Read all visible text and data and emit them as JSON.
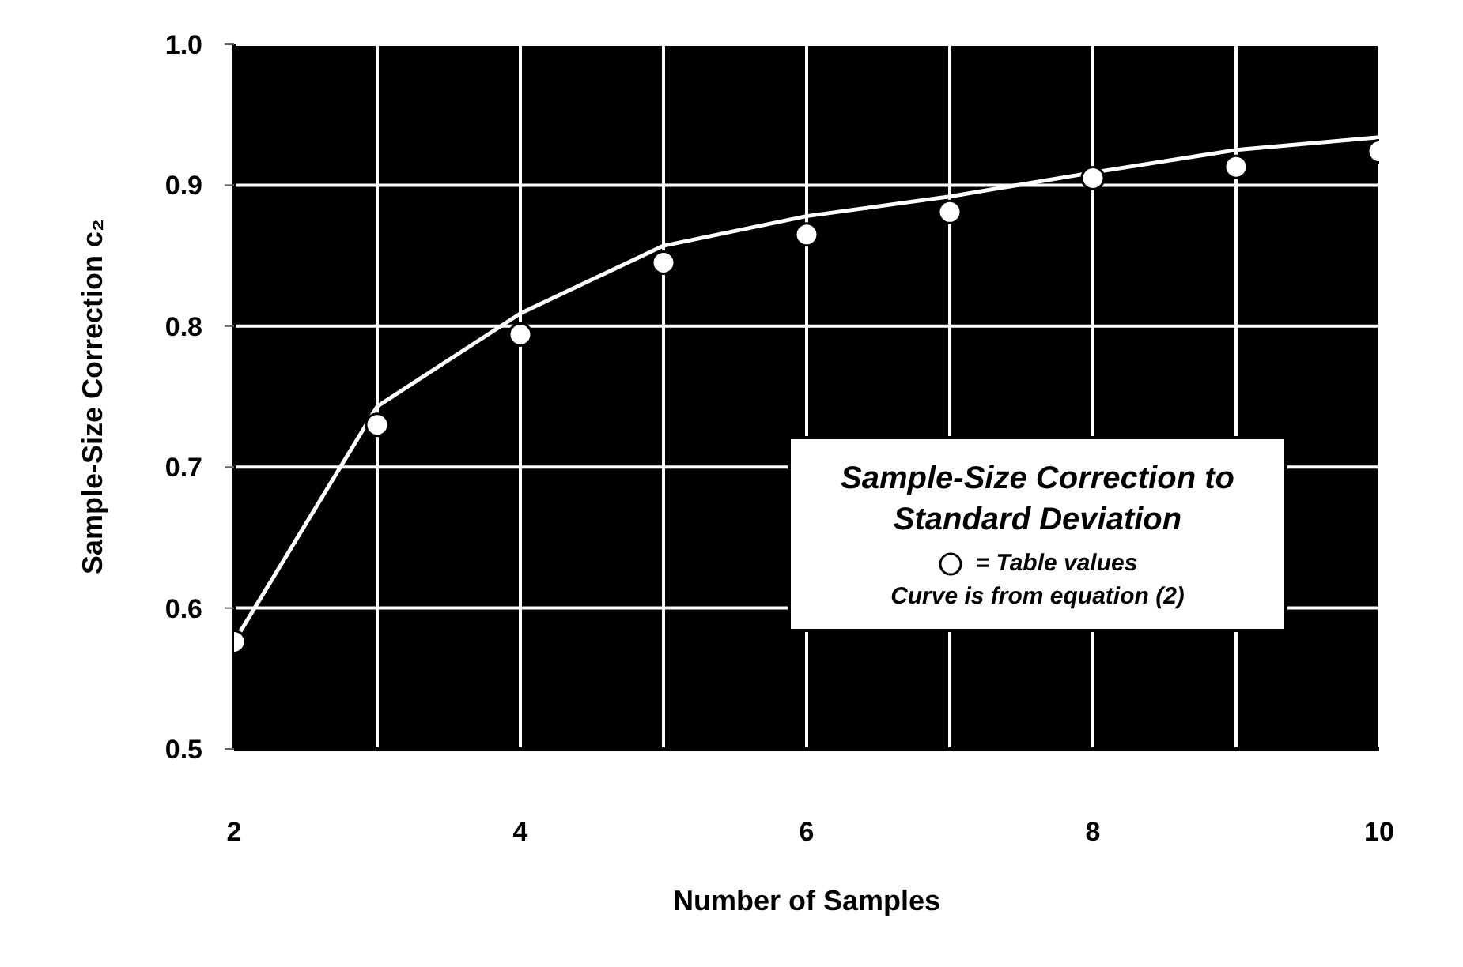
{
  "chart_data": {
    "type": "scatter",
    "title": "Sample-Size Correction to Standard Deviation",
    "xlabel": "Number of Samples",
    "ylabel": "Sample-Size Correction c₂",
    "x": [
      2,
      3,
      4,
      5,
      6,
      7,
      8,
      9,
      10
    ],
    "series": [
      {
        "name": "= Table values",
        "color": "#ffffff",
        "marker": "circle",
        "values": [
          0.576,
          0.73,
          0.794,
          0.845,
          0.865,
          0.881,
          0.905,
          0.913,
          0.924
        ]
      },
      {
        "type": "line",
        "color": "#ffffff",
        "marker": "none",
        "line_style": "solid",
        "values": [
          0.576,
          0.743,
          0.809,
          0.857,
          0.878,
          0.892,
          0.909,
          0.925,
          0.934
        ]
      }
    ],
    "annotations": [
      "Curve is from equation (2)"
    ],
    "xlim": [
      2,
      10
    ],
    "xticks": [
      2,
      4,
      6,
      8,
      10
    ],
    "ylim": [
      0.5,
      1.0
    ],
    "yticks": [
      0.5,
      0.6,
      0.7,
      0.8,
      0.9,
      {
        "value": 1.0,
        "label": "1.0"
      }
    ],
    "grid": true,
    "legend": "right"
  }
}
